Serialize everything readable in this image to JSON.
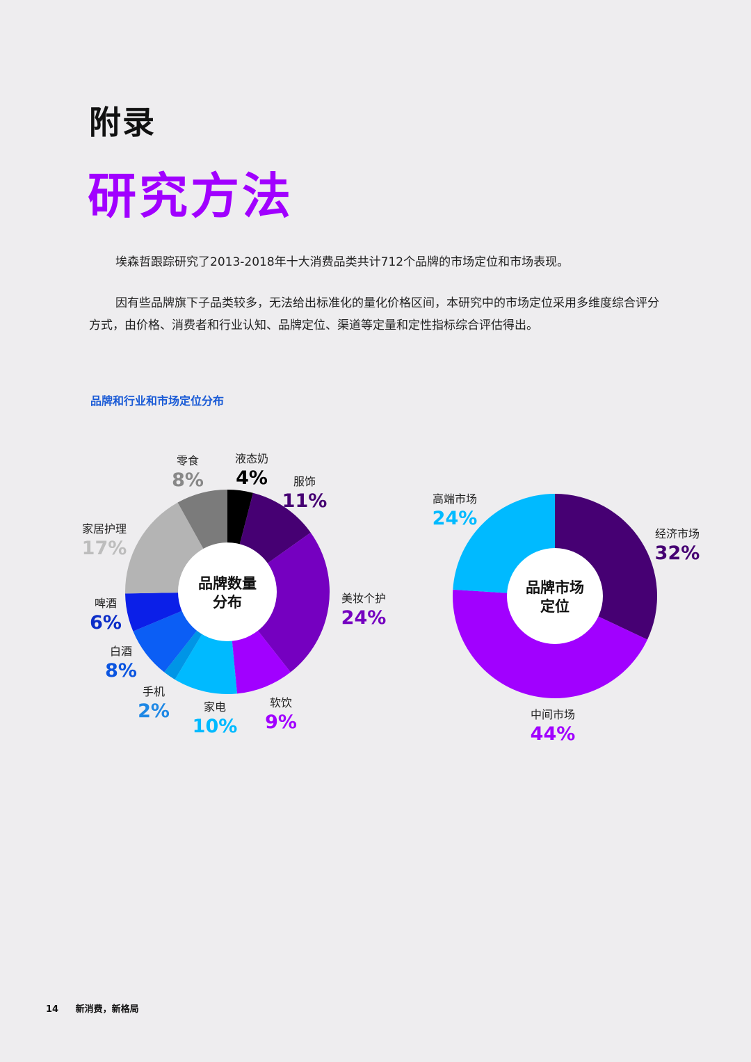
{
  "page": {
    "appendix_label": "附录",
    "title": "研究方法",
    "paragraph1": "埃森哲跟踪研究了2013-2018年十大消费品类共计712个品牌的市场定位和市场表现。",
    "paragraph2": "因有些品牌旗下子品类较多，无法给出标准化的量化价格区间，本研究中的市场定位采用多维度综合评分方式，由价格、消费者和行业认知、品牌定位、渠道等定量和定性指标综合评估得出。",
    "section_title": "品牌和行业和市场定位分布",
    "footer": {
      "page_number": "14",
      "publication": "新消费，新格局"
    }
  },
  "chart_data": [
    {
      "type": "pie",
      "title": "",
      "center_label": [
        "品牌数量",
        "分布"
      ],
      "unit": "%",
      "slices": [
        {
          "label": "液态奶",
          "value": 4,
          "color": "#000000",
          "pct_color": "#000000"
        },
        {
          "label": "服饰",
          "value": 11,
          "color": "#460073",
          "pct_color": "#460073"
        },
        {
          "label": "美妆个护",
          "value": 24,
          "color": "#7500c0",
          "pct_color": "#7500c0"
        },
        {
          "label": "软饮",
          "value": 9,
          "color": "#a100ff",
          "pct_color": "#a100ff"
        },
        {
          "label": "家电",
          "value": 10,
          "color": "#00baff",
          "pct_color": "#00baff"
        },
        {
          "label": "手机",
          "value": 2,
          "color": "#0095e6",
          "pct_color": "#1f88e5"
        },
        {
          "label": "白酒",
          "value": 8,
          "color": "#0b5ef5",
          "pct_color": "#0b55e0"
        },
        {
          "label": "啤酒",
          "value": 6,
          "color": "#0b1fe8",
          "pct_color": "#0b2dc8"
        },
        {
          "label": "家居护理",
          "value": 17,
          "color": "#b4b4b4",
          "pct_color": "#bdbdbd"
        },
        {
          "label": "零食",
          "value": 8,
          "color": "#7b7b7b",
          "pct_color": "#888888"
        }
      ]
    },
    {
      "type": "pie",
      "title": "",
      "center_label": [
        "品牌市场",
        "定位"
      ],
      "unit": "%",
      "slices": [
        {
          "label": "经济市场",
          "value": 32,
          "color": "#460073",
          "pct_color": "#460073"
        },
        {
          "label": "中间市场",
          "value": 44,
          "color": "#a100ff",
          "pct_color": "#a100ff"
        },
        {
          "label": "高端市场",
          "value": 24,
          "color": "#00baff",
          "pct_color": "#00baff"
        }
      ]
    }
  ]
}
